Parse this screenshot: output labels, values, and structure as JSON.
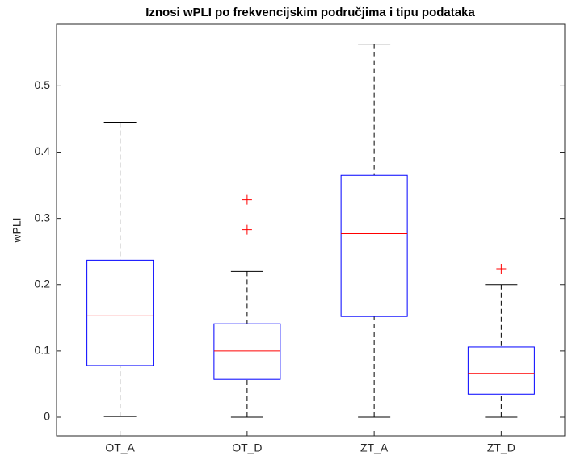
{
  "chart_data": {
    "type": "box",
    "title": "Iznosi wPLI po frekvencijskim područjima i tipu podataka",
    "ylabel": "wPLI",
    "categories": [
      "OT_A",
      "OT_D",
      "ZT_A",
      "ZT_D"
    ],
    "boxes": [
      {
        "min": 0.001,
        "q1": 0.078,
        "median": 0.153,
        "q3": 0.237,
        "max": 0.445,
        "outliers": []
      },
      {
        "min": 0.0,
        "q1": 0.057,
        "median": 0.1,
        "q3": 0.141,
        "max": 0.22,
        "outliers": [
          0.283,
          0.328
        ]
      },
      {
        "min": 0.0,
        "q1": 0.152,
        "median": 0.277,
        "q3": 0.365,
        "max": 0.563,
        "outliers": []
      },
      {
        "min": 0.0,
        "q1": 0.035,
        "median": 0.066,
        "q3": 0.106,
        "max": 0.2,
        "outliers": [
          0.224
        ]
      }
    ],
    "box_color": "#0000ff",
    "median_color": "#ff0000",
    "whisker_color": "#000000",
    "outlier_color": "#ff0000",
    "ylim": [
      -0.028,
      0.593
    ],
    "yticks": [
      0,
      0.1,
      0.2,
      0.3,
      0.4,
      0.5
    ]
  }
}
